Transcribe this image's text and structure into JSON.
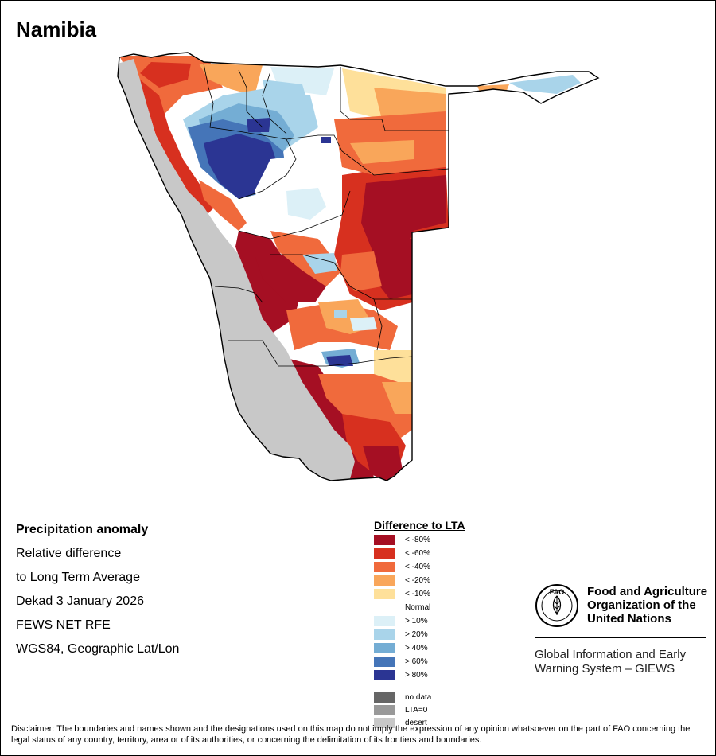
{
  "title": "Namibia",
  "info": {
    "heading": "Precipitation anomaly",
    "line1": "Relative difference",
    "line2": "to Long Term Average",
    "period": "Dekad 3 January 2026",
    "source": "FEWS NET RFE",
    "projection": "WGS84, Geographic Lat/Lon"
  },
  "legend": {
    "title": "Difference to LTA",
    "classes": [
      {
        "label": "< -80%",
        "color": "#a50f23"
      },
      {
        "label": "< -60%",
        "color": "#d7301f"
      },
      {
        "label": "< -40%",
        "color": "#f06a3c"
      },
      {
        "label": "< -20%",
        "color": "#f9a65a"
      },
      {
        "label": "< -10%",
        "color": "#fee09a"
      },
      {
        "label": "Normal",
        "color": "#ffffff"
      },
      {
        "label": "> 10%",
        "color": "#dcf0f7"
      },
      {
        "label": "> 20%",
        "color": "#a9d4ea"
      },
      {
        "label": "> 40%",
        "color": "#74add4"
      },
      {
        "label": "> 60%",
        "color": "#4575b8"
      },
      {
        "label": "> 80%",
        "color": "#2b3593"
      }
    ],
    "extra": [
      {
        "label": "no data",
        "color": "#666666"
      },
      {
        "label": "LTA=0",
        "color": "#999999"
      },
      {
        "label": "desert",
        "color": "#c8c8c8"
      }
    ]
  },
  "fao": {
    "logo_text": "FAO",
    "name_line1": "Food and Agriculture",
    "name_line2": "Organization of the",
    "name_line3": "United Nations",
    "giews_line1": "Global Information and Early",
    "giews_line2": "Warning System – GIEWS"
  },
  "disclaimer": "Disclaimer: The boundaries and names shown and the designations used on this map do not imply the expression of any opinion whatsoever on the part of FAO concerning the legal status of any country, territory, area or of its authorities, or concerning the delimitation of its frontiers and boundaries.",
  "colors": {
    "desert": "#c8c8c8",
    "border": "#000000"
  }
}
